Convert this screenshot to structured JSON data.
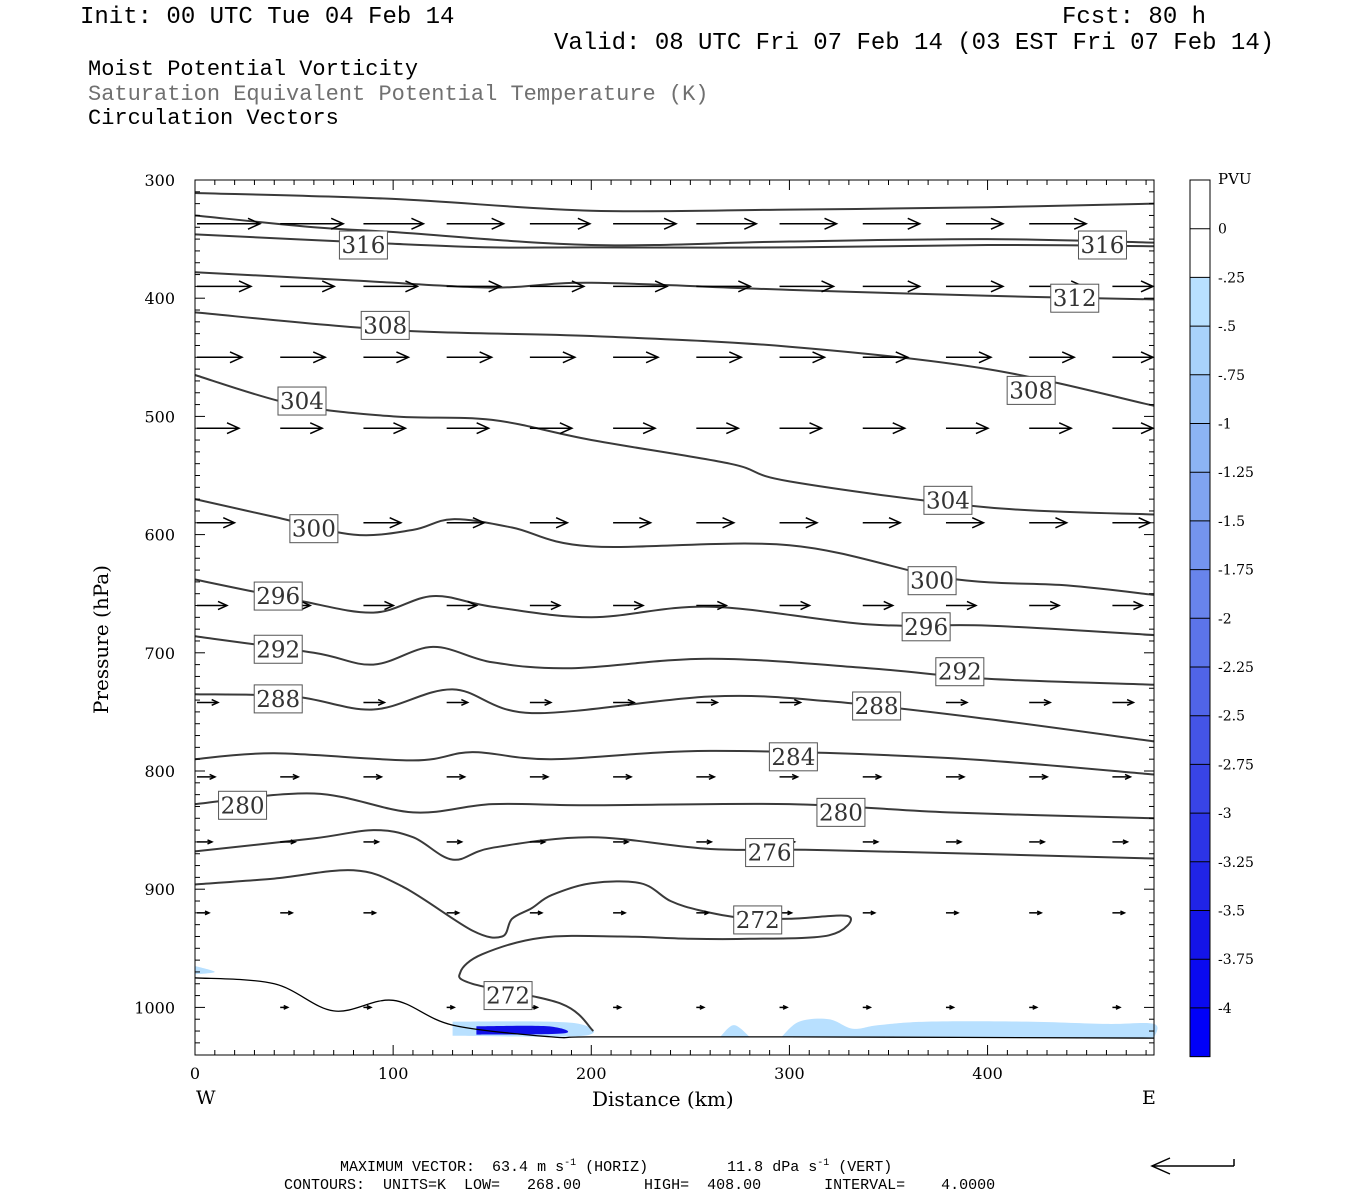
{
  "header": {
    "init": "Init: 00 UTC Tue 04 Feb 14",
    "fcst": "Fcst:   80 h",
    "valid": "Valid: 08 UTC Fri 07 Feb 14 (03 EST Fri 07 Feb 14)"
  },
  "legend_titles": {
    "line1": "Moist Potential Vorticity",
    "line2": "Saturation Equivalent Potential Temperature (K)",
    "line3": "Circulation Vectors"
  },
  "colors": {
    "contour": "#3a3a3a",
    "grey_title": "#707070",
    "pv_light": "#b8e0ff",
    "pv_dark": "#1010e8"
  },
  "footer": {
    "max_vector_label": "MAXIMUM VECTOR:",
    "horiz_value": "63.4",
    "horiz_unit": "m s",
    "horiz_exp": "-1",
    "horiz_tag": "(HORIZ)",
    "vert_value": "11.8",
    "vert_unit": "dPa s",
    "vert_exp": "-1",
    "vert_tag": "(VERT)",
    "contours": "CONTOURS:  UNITS=K  LOW=   268.00       HIGH=  408.00       INTERVAL=    4.0000"
  },
  "chart_data": {
    "type": "contour",
    "xlabel": "Distance (km)",
    "ylabel": "Pressure (hPa)",
    "xlim": [
      0,
      484
    ],
    "ylim": [
      1040,
      300
    ],
    "x_ticks": [
      0,
      100,
      200,
      300,
      400
    ],
    "y_ticks": [
      300,
      400,
      500,
      600,
      700,
      800,
      900,
      1000
    ],
    "x_end_labels": {
      "left": "W",
      "right": "E"
    },
    "colorbar": {
      "unit_label": "PVU",
      "labels": [
        "0",
        "-.25",
        "-.5",
        "-.75",
        "-1",
        "-1.25",
        "-1.5",
        "-1.75",
        "-2",
        "-2.25",
        "-2.5",
        "-2.75",
        "-3",
        "-3.25",
        "-3.5",
        "-3.75",
        "-4"
      ],
      "segments": [
        "#ffffff",
        "#ffffff",
        "#b8e0ff",
        "#a8d2fb",
        "#99c3f7",
        "#8cb4f4",
        "#80a4f1",
        "#7494ee",
        "#6884ec",
        "#5c74ea",
        "#5064e8",
        "#4454e7",
        "#3844e6",
        "#2c34e6",
        "#2024e7",
        "#1414e8",
        "#0a0af0",
        "#0000f8"
      ]
    },
    "contour_labels": [
      {
        "text": "316",
        "x": 85,
        "p": 355
      },
      {
        "text": "316",
        "x": 458,
        "p": 355
      },
      {
        "text": "312",
        "x": 444,
        "p": 400
      },
      {
        "text": "308",
        "x": 96,
        "p": 423
      },
      {
        "text": "308",
        "x": 422,
        "p": 478
      },
      {
        "text": "304",
        "x": 54,
        "p": 487
      },
      {
        "text": "304",
        "x": 380,
        "p": 571
      },
      {
        "text": "300",
        "x": 60,
        "p": 595
      },
      {
        "text": "300",
        "x": 372,
        "p": 639
      },
      {
        "text": "296",
        "x": 42,
        "p": 652
      },
      {
        "text": "296",
        "x": 369,
        "p": 678
      },
      {
        "text": "292",
        "x": 42,
        "p": 697
      },
      {
        "text": "292",
        "x": 386,
        "p": 716
      },
      {
        "text": "288",
        "x": 42,
        "p": 739
      },
      {
        "text": "288",
        "x": 344,
        "p": 745
      },
      {
        "text": "284",
        "x": 302,
        "p": 788
      },
      {
        "text": "280",
        "x": 24,
        "p": 829
      },
      {
        "text": "280",
        "x": 326,
        "p": 835
      },
      {
        "text": "276",
        "x": 290,
        "p": 869
      },
      {
        "text": "272",
        "x": 284,
        "p": 926
      },
      {
        "text": "272",
        "x": 158,
        "p": 990
      }
    ],
    "isentropes": [
      {
        "value": 320,
        "points": [
          [
            0,
            311
          ],
          [
            100,
            316
          ],
          [
            200,
            326
          ],
          [
            300,
            325
          ],
          [
            400,
            323
          ],
          [
            484,
            320
          ]
        ]
      },
      {
        "value": 316,
        "points": [
          [
            0,
            330
          ],
          [
            60,
            340
          ],
          [
            100,
            344
          ],
          [
            200,
            355
          ],
          [
            300,
            352
          ],
          [
            400,
            350
          ],
          [
            484,
            353
          ]
        ]
      },
      {
        "value": 316,
        "points": [
          [
            0,
            346
          ],
          [
            100,
            354
          ],
          [
            150,
            357
          ],
          [
            200,
            357
          ],
          [
            300,
            357
          ],
          [
            400,
            355
          ],
          [
            484,
            356
          ]
        ]
      },
      {
        "value": 312,
        "points": [
          [
            0,
            378
          ],
          [
            80,
            385
          ],
          [
            150,
            391
          ],
          [
            200,
            387
          ],
          [
            300,
            393
          ],
          [
            400,
            398
          ],
          [
            484,
            401
          ]
        ]
      },
      {
        "value": 308,
        "points": [
          [
            0,
            412
          ],
          [
            100,
            427
          ],
          [
            200,
            432
          ],
          [
            300,
            441
          ],
          [
            400,
            460
          ],
          [
            484,
            491
          ]
        ]
      },
      {
        "value": 304,
        "points": [
          [
            0,
            465
          ],
          [
            50,
            490
          ],
          [
            100,
            500
          ],
          [
            150,
            503
          ],
          [
            200,
            520
          ],
          [
            270,
            540
          ],
          [
            300,
            555
          ],
          [
            400,
            577
          ],
          [
            484,
            583
          ]
        ]
      },
      {
        "value": 300,
        "points": [
          [
            0,
            570
          ],
          [
            40,
            585
          ],
          [
            80,
            600
          ],
          [
            110,
            596
          ],
          [
            130,
            587
          ],
          [
            160,
            594
          ],
          [
            200,
            610
          ],
          [
            300,
            609
          ],
          [
            380,
            637
          ],
          [
            440,
            643
          ],
          [
            484,
            651
          ]
        ]
      },
      {
        "value": 296,
        "points": [
          [
            0,
            638
          ],
          [
            50,
            655
          ],
          [
            90,
            666
          ],
          [
            120,
            652
          ],
          [
            150,
            661
          ],
          [
            200,
            670
          ],
          [
            260,
            661
          ],
          [
            340,
            676
          ],
          [
            400,
            677
          ],
          [
            484,
            685
          ]
        ]
      },
      {
        "value": 292,
        "points": [
          [
            0,
            686
          ],
          [
            60,
            700
          ],
          [
            90,
            710
          ],
          [
            120,
            695
          ],
          [
            150,
            708
          ],
          [
            190,
            713
          ],
          [
            260,
            705
          ],
          [
            340,
            713
          ],
          [
            400,
            722
          ],
          [
            484,
            727
          ]
        ]
      },
      {
        "value": 288,
        "points": [
          [
            0,
            735
          ],
          [
            50,
            737
          ],
          [
            90,
            748
          ],
          [
            130,
            731
          ],
          [
            170,
            751
          ],
          [
            260,
            737
          ],
          [
            320,
            741
          ],
          [
            400,
            756
          ],
          [
            484,
            775
          ]
        ]
      },
      {
        "value": 284,
        "points": [
          [
            0,
            790
          ],
          [
            40,
            785
          ],
          [
            110,
            791
          ],
          [
            140,
            784
          ],
          [
            180,
            790
          ],
          [
            260,
            783
          ],
          [
            380,
            789
          ],
          [
            484,
            803
          ]
        ]
      },
      {
        "value": 280,
        "points": [
          [
            0,
            828
          ],
          [
            60,
            819
          ],
          [
            110,
            835
          ],
          [
            150,
            828
          ],
          [
            200,
            829
          ],
          [
            300,
            828
          ],
          [
            380,
            835
          ],
          [
            484,
            840
          ]
        ]
      },
      {
        "value": 276,
        "points": [
          [
            0,
            868
          ],
          [
            60,
            857
          ],
          [
            90,
            850
          ],
          [
            110,
            856
          ],
          [
            130,
            875
          ],
          [
            150,
            865
          ],
          [
            200,
            856
          ],
          [
            260,
            866
          ],
          [
            320,
            867
          ],
          [
            484,
            874
          ]
        ]
      },
      {
        "value": 272,
        "points": [
          [
            0,
            896
          ],
          [
            40,
            891
          ],
          [
            80,
            884
          ],
          [
            105,
            898
          ],
          [
            140,
            935
          ],
          [
            155,
            940
          ],
          [
            160,
            925
          ],
          [
            170,
            916
          ],
          [
            180,
            905
          ],
          [
            200,
            895
          ],
          [
            225,
            895
          ],
          [
            240,
            910
          ],
          [
            255,
            918
          ],
          [
            275,
            924
          ],
          [
            300,
            925
          ],
          [
            330,
            923
          ],
          [
            320,
            939
          ],
          [
            280,
            942
          ],
          [
            250,
            942
          ],
          [
            215,
            940
          ],
          [
            175,
            941
          ],
          [
            145,
            955
          ],
          [
            134,
            970
          ],
          [
            140,
            980
          ],
          [
            185,
            997
          ],
          [
            201,
            1020
          ]
        ]
      }
    ],
    "surface": [
      [
        0,
        975
      ],
      [
        40,
        980
      ],
      [
        70,
        1003
      ],
      [
        100,
        994
      ],
      [
        130,
        1015
      ],
      [
        180,
        1025
      ],
      [
        200,
        1025
      ],
      [
        300,
        1025
      ],
      [
        484,
        1026
      ]
    ],
    "pv_regions": [
      {
        "level": -0.25,
        "points": [
          [
            130,
            1012
          ],
          [
            190,
            1013
          ],
          [
            196,
            1024
          ],
          [
            130,
            1024
          ]
        ]
      },
      {
        "level": -2.5,
        "points": [
          [
            142,
            1016
          ],
          [
            178,
            1016
          ],
          [
            186,
            1022
          ],
          [
            142,
            1023
          ]
        ]
      },
      {
        "level": -0.25,
        "points": [
          [
            265,
            1025
          ],
          [
            272,
            1015
          ],
          [
            280,
            1025
          ]
        ]
      },
      {
        "level": -0.25,
        "points": [
          [
            296,
            1025
          ],
          [
            305,
            1012
          ],
          [
            320,
            1010
          ],
          [
            332,
            1018
          ],
          [
            345,
            1015
          ],
          [
            370,
            1012
          ],
          [
            420,
            1012
          ],
          [
            460,
            1014
          ],
          [
            484,
            1014
          ],
          [
            484,
            1026
          ]
        ]
      },
      {
        "level": -0.25,
        "points": [
          [
            0,
            965
          ],
          [
            10,
            970
          ],
          [
            0,
            972
          ]
        ]
      }
    ],
    "vectors": {
      "rows": [
        {
          "p": 337,
          "xs": [
            0,
            42,
            84,
            126,
            168,
            210,
            252,
            294,
            336,
            378,
            420
          ]
        },
        {
          "p": 390,
          "xs": [
            0,
            42,
            84,
            126,
            168,
            210,
            252,
            294,
            336,
            378,
            420,
            462
          ]
        },
        {
          "p": 450,
          "xs": [
            0,
            42,
            84,
            126,
            168,
            210,
            252,
            294,
            336,
            378,
            420,
            462
          ]
        },
        {
          "p": 510,
          "xs": [
            0,
            42,
            84,
            126,
            168,
            210,
            252,
            294,
            336,
            378,
            420,
            462
          ]
        },
        {
          "p": 590,
          "xs": [
            0,
            84,
            126,
            168,
            210,
            252,
            294,
            336,
            378,
            420,
            462
          ]
        },
        {
          "p": 660,
          "xs": [
            0,
            42,
            84,
            126,
            168,
            210,
            252,
            294,
            336,
            378,
            420,
            462
          ]
        },
        {
          "p": 742,
          "xs": [
            0,
            42,
            84,
            126,
            168,
            210,
            252,
            294,
            336,
            378,
            420,
            462
          ]
        },
        {
          "p": 805,
          "xs": [
            0,
            42,
            84,
            126,
            168,
            210,
            252,
            294,
            336,
            378,
            420,
            462
          ]
        },
        {
          "p": 860,
          "xs": [
            0,
            42,
            84,
            126,
            168,
            210,
            252,
            294,
            336,
            378,
            420,
            462
          ]
        },
        {
          "p": 920,
          "xs": [
            0,
            42,
            84,
            126,
            168,
            210,
            252,
            294,
            336,
            378,
            420,
            462
          ]
        },
        {
          "p": 1000,
          "xs": [
            42,
            84,
            126,
            168,
            210,
            252,
            294,
            336,
            378,
            420,
            462
          ]
        }
      ],
      "u": [
        [
          42,
          42,
          40,
          38,
          40,
          42,
          40,
          38,
          38,
          38,
          38
        ],
        [
          36,
          36,
          36,
          36,
          36,
          36,
          36,
          36,
          38,
          38,
          36,
          36
        ],
        [
          30,
          30,
          30,
          30,
          30,
          30,
          30,
          30,
          30,
          30,
          30,
          30
        ],
        [
          28,
          28,
          28,
          28,
          28,
          28,
          28,
          28,
          28,
          28,
          28,
          28
        ],
        [
          25,
          25,
          25,
          25,
          25,
          25,
          25,
          25,
          25,
          25,
          25
        ],
        [
          20,
          20,
          20,
          20,
          20,
          20,
          20,
          20,
          20,
          20,
          20,
          20
        ],
        [
          14,
          14,
          14,
          14,
          14,
          14,
          14,
          14,
          14,
          14,
          14,
          14
        ],
        [
          12,
          12,
          12,
          12,
          12,
          12,
          12,
          12,
          12,
          12,
          12,
          12
        ],
        [
          10,
          10,
          10,
          10,
          10,
          10,
          10,
          10,
          10,
          10,
          10,
          10
        ],
        [
          8,
          8,
          8,
          8,
          8,
          8,
          8,
          8,
          8,
          8,
          8,
          8
        ],
        [
          5,
          5,
          5,
          5,
          5,
          5,
          5,
          5,
          5,
          5,
          5
        ]
      ]
    }
  }
}
